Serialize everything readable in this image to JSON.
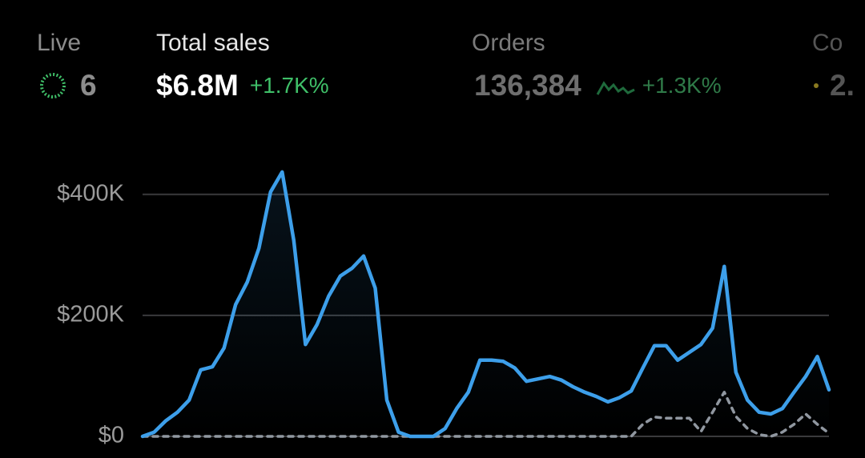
{
  "metrics": [
    {
      "label": "Live",
      "value": "6"
    },
    {
      "label": "Total sales",
      "value": "$6.8M",
      "change": "+1.7K%"
    },
    {
      "label": "Orders",
      "value": "136,384",
      "change": "+1.3K%"
    },
    {
      "label": "Co",
      "value": "2."
    }
  ],
  "chart_data": {
    "type": "line",
    "ylim": [
      0,
      450000
    ],
    "yticks": [
      {
        "value": 0,
        "label": "$0"
      },
      {
        "value": 200000,
        "label": "$200K"
      },
      {
        "value": 400000,
        "label": "$400K"
      }
    ],
    "grid": true,
    "series": [
      {
        "color": "#3d9fea",
        "style": "solid",
        "values": [
          0,
          7000,
          26000,
          40000,
          60000,
          110000,
          115000,
          146000,
          218000,
          255000,
          311000,
          404000,
          437000,
          324000,
          152000,
          185000,
          232000,
          265000,
          278000,
          298000,
          245000,
          60000,
          7000,
          0,
          0,
          0,
          13000,
          46000,
          73000,
          126000,
          126000,
          124000,
          113000,
          91000,
          95000,
          99000,
          93000,
          82000,
          73000,
          66000,
          57000,
          64000,
          75000,
          113000,
          150000,
          150000,
          126000,
          139000,
          152000,
          179000,
          281000,
          106000,
          60000,
          40000,
          37000,
          46000,
          73000,
          99000,
          132000,
          77000
        ]
      },
      {
        "color": "#9097a0",
        "style": "dashed",
        "values": [
          0,
          0,
          0,
          0,
          0,
          0,
          0,
          0,
          0,
          0,
          0,
          0,
          0,
          0,
          0,
          0,
          0,
          0,
          0,
          0,
          0,
          0,
          0,
          0,
          0,
          0,
          0,
          0,
          0,
          0,
          0,
          0,
          0,
          0,
          0,
          0,
          0,
          0,
          0,
          0,
          0,
          0,
          0,
          20000,
          32000,
          30000,
          30000,
          30000,
          8000,
          40000,
          73000,
          33000,
          13000,
          3000,
          0,
          7000,
          20000,
          37000,
          20000,
          5000
        ]
      }
    ]
  }
}
